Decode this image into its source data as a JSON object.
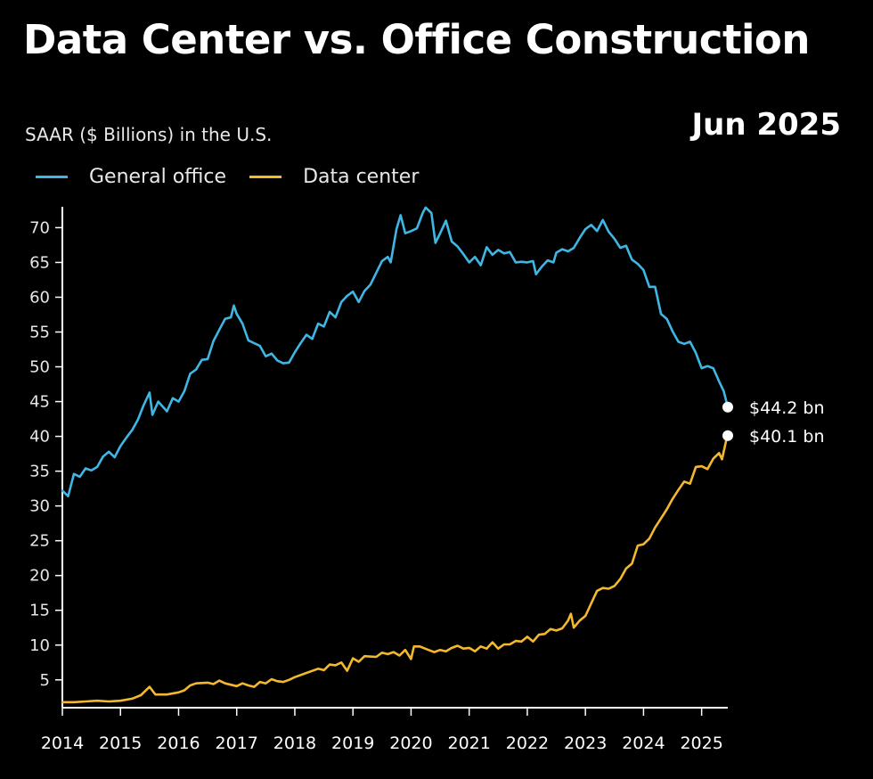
{
  "header": {
    "title": "Data Center vs. Office Construction",
    "subtitle": "SAAR ($ Billions) in the U.S.",
    "date_stamp": "Jun 2025"
  },
  "colors": {
    "background": "#000000",
    "general_office": "#3fb6e4",
    "data_center": "#f3b82c",
    "axis": "#ffffff",
    "dim_tick": "#8a8a8a"
  },
  "chart_data": {
    "type": "line",
    "title": "Data Center vs. Office Construction",
    "ylabel": "SAAR ($ Billions) in the U.S.",
    "xlabel": "",
    "xlim": [
      2014.0,
      2025.45
    ],
    "ylim": [
      1,
      73
    ],
    "yticks": [
      5,
      10,
      15,
      20,
      25,
      30,
      35,
      40,
      45,
      50,
      55,
      60,
      65,
      70
    ],
    "xticks": [
      {
        "label": "2014",
        "value": 2014,
        "dim": false
      },
      {
        "label": "2015",
        "value": 2015,
        "dim": false
      },
      {
        "label": "2016",
        "value": 2016,
        "dim": false
      },
      {
        "label": "2017",
        "value": 2017,
        "dim": false
      },
      {
        "label": "2018",
        "value": 2018,
        "dim": false
      },
      {
        "label": "2019",
        "value": 2019,
        "dim": false
      },
      {
        "label": "2020",
        "value": 2020,
        "dim": false
      },
      {
        "label": "2021",
        "value": 2021,
        "dim": false
      },
      {
        "label": "2022",
        "value": 2022,
        "dim": false
      },
      {
        "label": "2023",
        "value": 2023,
        "dim": false
      },
      {
        "label": "2024",
        "value": 2024,
        "dim": false
      },
      {
        "label": "2025",
        "value": 2025,
        "dim": true
      }
    ],
    "legend": [
      "General office",
      "Data center"
    ],
    "legend_position": "top-left",
    "series": [
      {
        "name": "General office",
        "color": "#3fb6e4",
        "end_label": "$44.2 bn",
        "points": [
          [
            2014.0,
            32.2
          ],
          [
            2014.1,
            31.4
          ],
          [
            2014.2,
            34.6
          ],
          [
            2014.3,
            34.2
          ],
          [
            2014.4,
            35.4
          ],
          [
            2014.5,
            35.1
          ],
          [
            2014.6,
            35.6
          ],
          [
            2014.7,
            37.1
          ],
          [
            2014.8,
            37.8
          ],
          [
            2014.9,
            37.0
          ],
          [
            2015.0,
            38.6
          ],
          [
            2015.1,
            39.8
          ],
          [
            2015.2,
            40.9
          ],
          [
            2015.3,
            42.4
          ],
          [
            2015.4,
            44.5
          ],
          [
            2015.5,
            46.3
          ],
          [
            2015.55,
            43.1
          ],
          [
            2015.65,
            45.0
          ],
          [
            2015.8,
            43.6
          ],
          [
            2015.9,
            45.5
          ],
          [
            2016.0,
            45.0
          ],
          [
            2016.1,
            46.5
          ],
          [
            2016.2,
            49.0
          ],
          [
            2016.3,
            49.6
          ],
          [
            2016.4,
            51.0
          ],
          [
            2016.5,
            51.1
          ],
          [
            2016.6,
            53.7
          ],
          [
            2016.7,
            55.3
          ],
          [
            2016.8,
            56.9
          ],
          [
            2016.9,
            57.1
          ],
          [
            2016.95,
            58.8
          ],
          [
            2017.0,
            57.6
          ],
          [
            2017.1,
            56.2
          ],
          [
            2017.2,
            53.8
          ],
          [
            2017.3,
            53.4
          ],
          [
            2017.4,
            53.0
          ],
          [
            2017.5,
            51.5
          ],
          [
            2017.6,
            51.9
          ],
          [
            2017.7,
            50.9
          ],
          [
            2017.8,
            50.5
          ],
          [
            2017.9,
            50.6
          ],
          [
            2018.0,
            52.1
          ],
          [
            2018.1,
            53.4
          ],
          [
            2018.2,
            54.6
          ],
          [
            2018.3,
            54.0
          ],
          [
            2018.4,
            56.2
          ],
          [
            2018.5,
            55.8
          ],
          [
            2018.6,
            57.9
          ],
          [
            2018.7,
            57.1
          ],
          [
            2018.8,
            59.3
          ],
          [
            2018.9,
            60.2
          ],
          [
            2019.0,
            60.8
          ],
          [
            2019.1,
            59.3
          ],
          [
            2019.2,
            60.9
          ],
          [
            2019.3,
            61.8
          ],
          [
            2019.4,
            63.5
          ],
          [
            2019.5,
            65.2
          ],
          [
            2019.6,
            65.8
          ],
          [
            2019.65,
            65.0
          ],
          [
            2019.75,
            69.8
          ],
          [
            2019.82,
            71.8
          ],
          [
            2019.9,
            69.2
          ],
          [
            2020.0,
            69.5
          ],
          [
            2020.1,
            69.9
          ],
          [
            2020.2,
            72.1
          ],
          [
            2020.25,
            72.9
          ],
          [
            2020.35,
            72.1
          ],
          [
            2020.42,
            67.8
          ],
          [
            2020.5,
            69.2
          ],
          [
            2020.6,
            71.0
          ],
          [
            2020.7,
            68.0
          ],
          [
            2020.8,
            67.3
          ],
          [
            2020.9,
            66.2
          ],
          [
            2021.0,
            65.0
          ],
          [
            2021.1,
            65.8
          ],
          [
            2021.2,
            64.6
          ],
          [
            2021.3,
            67.2
          ],
          [
            2021.4,
            66.1
          ],
          [
            2021.5,
            66.8
          ],
          [
            2021.6,
            66.3
          ],
          [
            2021.7,
            66.5
          ],
          [
            2021.8,
            65.0
          ],
          [
            2021.9,
            65.1
          ],
          [
            2022.0,
            65.0
          ],
          [
            2022.1,
            65.2
          ],
          [
            2022.15,
            63.3
          ],
          [
            2022.25,
            64.4
          ],
          [
            2022.35,
            65.3
          ],
          [
            2022.45,
            65.0
          ],
          [
            2022.5,
            66.4
          ],
          [
            2022.6,
            66.9
          ],
          [
            2022.7,
            66.6
          ],
          [
            2022.8,
            67.1
          ],
          [
            2022.9,
            68.5
          ],
          [
            2023.0,
            69.8
          ],
          [
            2023.1,
            70.4
          ],
          [
            2023.2,
            69.5
          ],
          [
            2023.3,
            71.1
          ],
          [
            2023.4,
            69.4
          ],
          [
            2023.5,
            68.4
          ],
          [
            2023.6,
            67.1
          ],
          [
            2023.7,
            67.4
          ],
          [
            2023.8,
            65.4
          ],
          [
            2023.9,
            64.8
          ],
          [
            2024.0,
            63.9
          ],
          [
            2024.1,
            61.5
          ],
          [
            2024.2,
            61.5
          ],
          [
            2024.3,
            57.6
          ],
          [
            2024.4,
            56.9
          ],
          [
            2024.5,
            55.1
          ],
          [
            2024.6,
            53.6
          ],
          [
            2024.7,
            53.3
          ],
          [
            2024.8,
            53.6
          ],
          [
            2024.9,
            52.0
          ],
          [
            2025.0,
            49.8
          ],
          [
            2025.1,
            50.1
          ],
          [
            2025.2,
            49.8
          ],
          [
            2025.3,
            47.9
          ],
          [
            2025.38,
            46.5
          ],
          [
            2025.45,
            44.2
          ]
        ]
      },
      {
        "name": "Data center",
        "color": "#f3b82c",
        "end_label": "$40.1 bn",
        "points": [
          [
            2014.0,
            1.8
          ],
          [
            2014.2,
            1.8
          ],
          [
            2014.4,
            1.9
          ],
          [
            2014.6,
            2.0
          ],
          [
            2014.8,
            1.9
          ],
          [
            2015.0,
            2.0
          ],
          [
            2015.2,
            2.3
          ],
          [
            2015.35,
            2.8
          ],
          [
            2015.5,
            4.0
          ],
          [
            2015.6,
            2.9
          ],
          [
            2015.8,
            2.9
          ],
          [
            2016.0,
            3.2
          ],
          [
            2016.1,
            3.5
          ],
          [
            2016.2,
            4.2
          ],
          [
            2016.3,
            4.5
          ],
          [
            2016.5,
            4.6
          ],
          [
            2016.6,
            4.4
          ],
          [
            2016.7,
            4.9
          ],
          [
            2016.8,
            4.5
          ],
          [
            2017.0,
            4.1
          ],
          [
            2017.1,
            4.5
          ],
          [
            2017.2,
            4.2
          ],
          [
            2017.3,
            4.0
          ],
          [
            2017.4,
            4.7
          ],
          [
            2017.5,
            4.5
          ],
          [
            2017.6,
            5.1
          ],
          [
            2017.7,
            4.8
          ],
          [
            2017.8,
            4.7
          ],
          [
            2017.9,
            5.0
          ],
          [
            2018.0,
            5.4
          ],
          [
            2018.2,
            6.0
          ],
          [
            2018.4,
            6.6
          ],
          [
            2018.5,
            6.4
          ],
          [
            2018.6,
            7.2
          ],
          [
            2018.7,
            7.1
          ],
          [
            2018.8,
            7.5
          ],
          [
            2018.9,
            6.3
          ],
          [
            2019.0,
            8.1
          ],
          [
            2019.1,
            7.6
          ],
          [
            2019.2,
            8.4
          ],
          [
            2019.4,
            8.3
          ],
          [
            2019.5,
            8.9
          ],
          [
            2019.6,
            8.7
          ],
          [
            2019.7,
            9.0
          ],
          [
            2019.8,
            8.5
          ],
          [
            2019.9,
            9.3
          ],
          [
            2020.0,
            8.0
          ],
          [
            2020.05,
            9.8
          ],
          [
            2020.15,
            9.8
          ],
          [
            2020.3,
            9.3
          ],
          [
            2020.4,
            9.0
          ],
          [
            2020.5,
            9.3
          ],
          [
            2020.6,
            9.1
          ],
          [
            2020.7,
            9.6
          ],
          [
            2020.8,
            9.9
          ],
          [
            2020.9,
            9.5
          ],
          [
            2021.0,
            9.6
          ],
          [
            2021.1,
            9.1
          ],
          [
            2021.2,
            9.8
          ],
          [
            2021.3,
            9.5
          ],
          [
            2021.4,
            10.4
          ],
          [
            2021.5,
            9.5
          ],
          [
            2021.6,
            10.1
          ],
          [
            2021.7,
            10.1
          ],
          [
            2021.8,
            10.6
          ],
          [
            2021.9,
            10.5
          ],
          [
            2022.0,
            11.2
          ],
          [
            2022.1,
            10.5
          ],
          [
            2022.2,
            11.5
          ],
          [
            2022.3,
            11.6
          ],
          [
            2022.4,
            12.3
          ],
          [
            2022.5,
            12.1
          ],
          [
            2022.6,
            12.4
          ],
          [
            2022.7,
            13.5
          ],
          [
            2022.75,
            14.5
          ],
          [
            2022.8,
            12.5
          ],
          [
            2022.9,
            13.5
          ],
          [
            2023.0,
            14.2
          ],
          [
            2023.1,
            16.0
          ],
          [
            2023.2,
            17.8
          ],
          [
            2023.3,
            18.2
          ],
          [
            2023.4,
            18.1
          ],
          [
            2023.5,
            18.5
          ],
          [
            2023.6,
            19.5
          ],
          [
            2023.7,
            21.0
          ],
          [
            2023.8,
            21.7
          ],
          [
            2023.9,
            24.3
          ],
          [
            2024.0,
            24.5
          ],
          [
            2024.1,
            25.3
          ],
          [
            2024.2,
            26.9
          ],
          [
            2024.3,
            28.2
          ],
          [
            2024.4,
            29.5
          ],
          [
            2024.5,
            31.0
          ],
          [
            2024.6,
            32.3
          ],
          [
            2024.7,
            33.5
          ],
          [
            2024.8,
            33.2
          ],
          [
            2024.9,
            35.6
          ],
          [
            2025.0,
            35.7
          ],
          [
            2025.1,
            35.3
          ],
          [
            2025.2,
            36.8
          ],
          [
            2025.3,
            37.6
          ],
          [
            2025.35,
            36.7
          ],
          [
            2025.42,
            39.3
          ],
          [
            2025.45,
            40.1
          ]
        ]
      }
    ]
  }
}
